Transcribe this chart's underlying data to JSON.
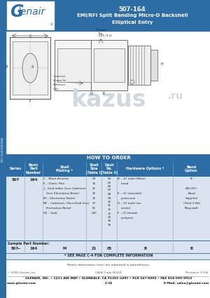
{
  "title_line1": "507-164",
  "title_line2": "EMI/RFI Split Banding Micro-D Backshell",
  "title_line3": "Elliptical Entry",
  "header_bg": "#2e6da4",
  "header_text_color": "#ffffff",
  "logo_bg": "#ffffff",
  "sidebar_bg": "#2e6da4",
  "sidebar_text": "507-164C0905HB",
  "table_header_bg": "#2e6da4",
  "table_header_text": "#ffffff",
  "table_row_bg": "#d9e4f0",
  "table_border": "#2e6da4",
  "how_to_order": "HOW TO ORDER",
  "series_val": "507",
  "part_val": "164",
  "sample_label": "Sample Part Number:",
  "sample_series": "507",
  "sample_part": "164",
  "sample_plating": "M",
  "sample_size": "21",
  "sample_dashno": "05",
  "sample_hardware": "B",
  "sample_band": "B",
  "footnote": "* SEE PAGE C-4 FOR COMPLETE INFORMATION",
  "metric_note": "Metric dimensions (mm) are indicated in parentheses.",
  "copyright": "© 2004 Glenair, Inc.",
  "cage": "CAGE Code 06324",
  "printed": "Printed in U.S.A.",
  "footer_line1": "GLENAIR, INC. • 1211 AIR WAY • GLENDALE, CA 91201-2497 • 818-247-6000 • FAX 818-500-9912",
  "footer_line2": "www.glenair.com",
  "footer_line3": "C-26",
  "footer_line4": "E-Mail: sales@glenair.com",
  "page_bg": "#ffffff",
  "drawing_bg": "#ffffff"
}
